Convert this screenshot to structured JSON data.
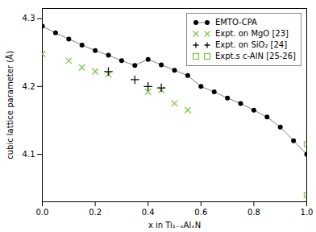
{
  "chart_data": {
    "type": "line",
    "xlabel": "x in Ti₁₋ₓAlₓN",
    "ylabel": "cubic lattice parameter (Å)",
    "xlim": [
      0,
      1.0
    ],
    "ylim": [
      4.03,
      4.315
    ],
    "xticks": [
      {
        "value": 0,
        "label": "0.0"
      },
      0.2,
      0.4,
      0.6,
      0.8,
      {
        "value": 1.0,
        "label": "1.0"
      }
    ],
    "yticks": [
      4.1,
      4.2,
      4.3
    ],
    "grid": false,
    "legend": "upper right",
    "series": [
      {
        "name": "EMTO-CPA",
        "type": "line",
        "marker": "circle",
        "color": "#000000",
        "x": [
          0.0,
          0.05,
          0.1,
          0.15,
          0.2,
          0.25,
          0.3,
          0.35,
          0.4,
          0.45,
          0.5,
          0.55,
          0.6,
          0.65,
          0.7,
          0.75,
          0.8,
          0.85,
          0.9,
          0.95,
          1.0
        ],
        "values": [
          4.289,
          4.279,
          4.27,
          4.261,
          4.253,
          4.246,
          4.238,
          4.231,
          4.24,
          4.232,
          4.224,
          4.216,
          4.2,
          4.192,
          4.183,
          4.175,
          4.165,
          4.155,
          4.14,
          4.12,
          4.1
        ]
      },
      {
        "name": "Expt. on MgO [23]",
        "type": "scatter",
        "marker": "x",
        "color": "#77cc44",
        "x": [
          0.0,
          0.1,
          0.15,
          0.2,
          0.25,
          0.4,
          0.45,
          0.5,
          0.55
        ],
        "values": [
          4.248,
          4.238,
          4.228,
          4.222,
          4.218,
          4.192,
          4.195,
          4.175,
          4.165
        ]
      },
      {
        "name": "Expt. on SiO₂ [24]",
        "type": "scatter",
        "marker": "plus",
        "color": "#111111",
        "x": [
          0.25,
          0.35,
          0.4,
          0.45
        ],
        "values": [
          4.222,
          4.21,
          4.2,
          4.198
        ]
      },
      {
        "name": "Expt.s c-AlN [25-26]",
        "type": "scatter",
        "marker": "open_square",
        "color": "#77cc44",
        "x": [
          1.0,
          1.0
        ],
        "values": [
          4.115,
          4.04
        ]
      }
    ]
  }
}
